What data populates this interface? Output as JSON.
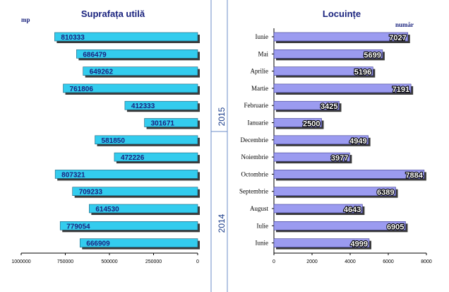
{
  "chart_data": [
    {
      "type": "bar",
      "orientation": "horizontal",
      "title": "Suprafața utilă",
      "unit_label": "mp",
      "x_reversed": true,
      "xlim": [
        0,
        1000000
      ],
      "xticks": [
        "0",
        "250000",
        "500000",
        "750000",
        "1000000"
      ],
      "xtick_values": [
        0,
        250000,
        500000,
        750000,
        1000000
      ],
      "values": [
        810333,
        686479,
        649262,
        761806,
        412333,
        301671,
        581850,
        472226,
        807321,
        709233,
        614530,
        779054,
        666909
      ],
      "value_labels": [
        "810333",
        "686479",
        "649262",
        "761806",
        "412333",
        "301671",
        "581850",
        "472226",
        "807321",
        "709233",
        "614530",
        "779054",
        "666909"
      ],
      "bar_color": "#33ccee"
    },
    {
      "type": "bar",
      "orientation": "horizontal",
      "title": "Locuințe",
      "unit_label": "număr",
      "xlim": [
        0,
        8000
      ],
      "xticks": [
        "0",
        "2000",
        "4000",
        "6000",
        "8000"
      ],
      "xtick_values": [
        0,
        2000,
        4000,
        6000,
        8000
      ],
      "categories": [
        "Iunie",
        "Mai",
        "Aprilie",
        "Martie",
        "Februarie",
        "Ianuarie",
        "Decembrie",
        "Noiembrie",
        "Octombrie",
        "Septembrie",
        "August",
        "Iulie",
        "Iunie"
      ],
      "values": [
        7027,
        5699,
        5196,
        7191,
        3425,
        2500,
        4949,
        3977,
        7884,
        6389,
        4643,
        6905,
        4999
      ],
      "value_labels": [
        "7027",
        "5699",
        "5196",
        "7191",
        "3425",
        "2500",
        "4949",
        "3977",
        "7884",
        "6389",
        "4643",
        "6905",
        "4999"
      ],
      "bar_color": "#9b9bf0"
    }
  ],
  "year_labels": [
    "2015",
    "2014"
  ],
  "colors": {
    "divider": "#6c8ec8",
    "text_dark_blue": "#1a237e",
    "shadow": "#3a3a3a"
  }
}
